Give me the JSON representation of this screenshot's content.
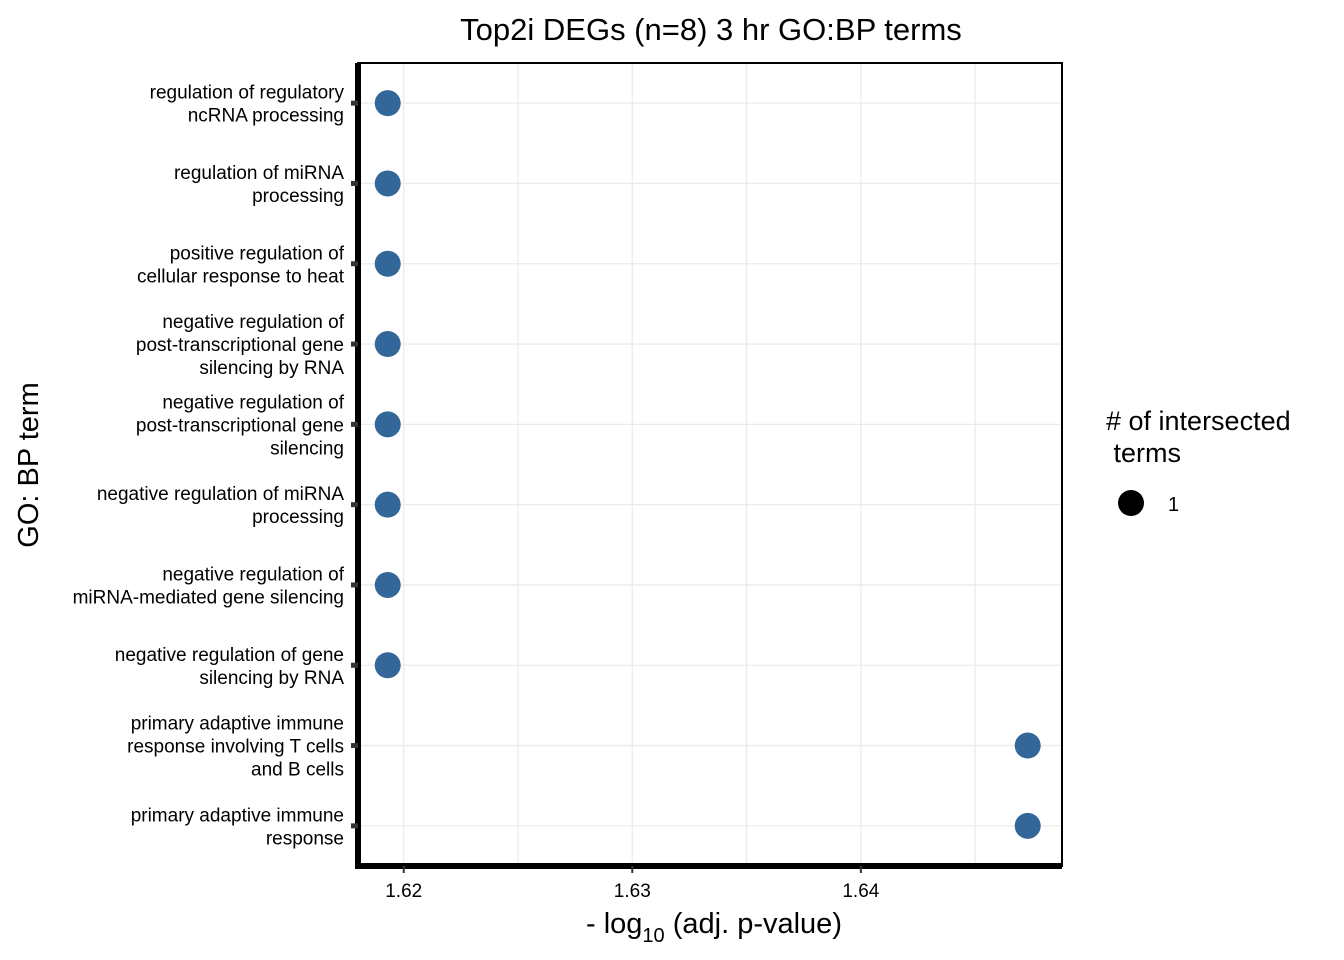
{
  "chart_data": {
    "type": "scatter",
    "title": "Top2i DEGs (n=8) 3 hr GO:BP terms",
    "xlabel": {
      "prefix": "- log",
      "subscript": "10",
      "suffix": " (adj. p-value)"
    },
    "ylabel": "GO: BP term",
    "xlim": [
      1.618,
      1.6488
    ],
    "x_ticks": [
      1.62,
      1.63,
      1.64
    ],
    "x_tick_labels": [
      "1.62",
      "1.63",
      "1.64"
    ],
    "grid": true,
    "point_color": "#336699",
    "categories": [
      [
        "regulation of regulatory",
        "ncRNA processing"
      ],
      [
        "regulation of miRNA",
        "processing"
      ],
      [
        "positive regulation of",
        "cellular response to heat"
      ],
      [
        "negative regulation of",
        "post-transcriptional gene",
        "silencing by RNA"
      ],
      [
        "negative regulation of",
        "post-transcriptional gene",
        "silencing"
      ],
      [
        "negative regulation of miRNA",
        "processing"
      ],
      [
        "negative regulation of",
        "miRNA-mediated gene silencing"
      ],
      [
        "negative regulation of gene",
        "silencing by RNA"
      ],
      [
        "primary adaptive immune",
        "response involving T cells",
        "and B cells"
      ],
      [
        "primary adaptive immune",
        "response"
      ]
    ],
    "x": [
      1.6193,
      1.6193,
      1.6193,
      1.6193,
      1.6193,
      1.6193,
      1.6193,
      1.6193,
      1.6473,
      1.6473
    ],
    "intersections": [
      1,
      1,
      1,
      1,
      1,
      1,
      1,
      1,
      1,
      1
    ],
    "legend": {
      "title_lines": [
        "# of intersected",
        " terms"
      ],
      "items": [
        {
          "label": "1",
          "color": "#000000"
        }
      ],
      "position": "right"
    }
  }
}
